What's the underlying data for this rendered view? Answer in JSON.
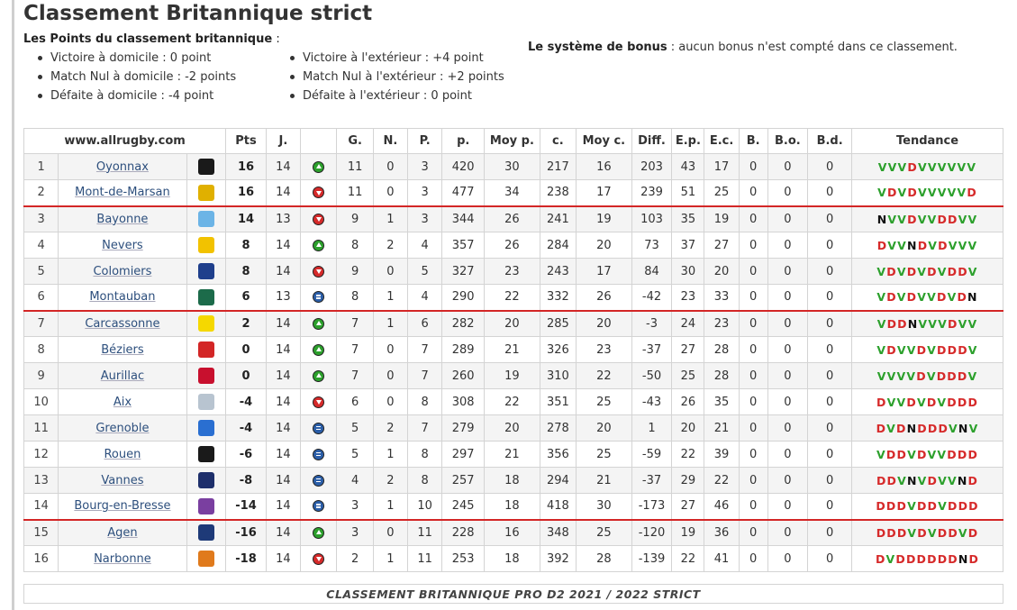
{
  "title": "Classement Britannique strict",
  "points_title": "Les Points du classement britannique",
  "points_colon": " :",
  "rules_left": [
    "Victoire à domicile : 0 point",
    "Match Nul à domicile : -2 points",
    "Défaite à domicile : -4 point"
  ],
  "rules_right": [
    "Victoire à l'extérieur : +4 point",
    "Match Nul à l'extérieur : +2 points",
    "Défaite à l'extérieur : 0 point"
  ],
  "bonus_label": "Le système de bonus",
  "bonus_text": " : aucun bonus n'est compté dans ce classement.",
  "table": {
    "site": "www.allrugby.com",
    "headers": [
      "Pts",
      "J.",
      "",
      "G.",
      "N.",
      "P.",
      "p.",
      "Moy p.",
      "c.",
      "Moy c.",
      "Diff.",
      "E.p.",
      "E.c.",
      "B.",
      "B.o.",
      "B.d.",
      "Tendance"
    ],
    "rows": [
      {
        "pos": "1",
        "team": "Oyonnax",
        "logo": "#1a1a1a",
        "pts": "16",
        "j": "14",
        "trend": "up",
        "g": "11",
        "n": "0",
        "p": "3",
        "pf": "420",
        "moyp": "30",
        "c": "217",
        "moyc": "16",
        "diff": "203",
        "ep": "43",
        "ec": "17",
        "b": "0",
        "bo": "0",
        "bd": "0",
        "tend": "VVVDVVVVVV"
      },
      {
        "pos": "2",
        "team": "Mont-de-Marsan",
        "logo": "#e0b000",
        "pts": "16",
        "j": "14",
        "trend": "down",
        "g": "11",
        "n": "0",
        "p": "3",
        "pf": "477",
        "moyp": "34",
        "c": "238",
        "moyc": "17",
        "diff": "239",
        "ep": "51",
        "ec": "25",
        "b": "0",
        "bo": "0",
        "bd": "0",
        "tend": "VDVDVVVVVD"
      },
      {
        "pos": "3",
        "team": "Bayonne",
        "logo": "#6cb4e6",
        "pts": "14",
        "j": "13",
        "trend": "down",
        "g": "9",
        "n": "1",
        "p": "3",
        "pf": "344",
        "moyp": "26",
        "c": "241",
        "moyc": "19",
        "diff": "103",
        "ep": "35",
        "ec": "19",
        "b": "0",
        "bo": "0",
        "bd": "0",
        "tend": "NVVDVVDDVV"
      },
      {
        "pos": "4",
        "team": "Nevers",
        "logo": "#f2c200",
        "pts": "8",
        "j": "14",
        "trend": "up",
        "g": "8",
        "n": "2",
        "p": "4",
        "pf": "357",
        "moyp": "26",
        "c": "284",
        "moyc": "20",
        "diff": "73",
        "ep": "37",
        "ec": "27",
        "b": "0",
        "bo": "0",
        "bd": "0",
        "tend": "DVVNDVDVVV"
      },
      {
        "pos": "5",
        "team": "Colomiers",
        "logo": "#1f3f8c",
        "pts": "8",
        "j": "14",
        "trend": "down",
        "g": "9",
        "n": "0",
        "p": "5",
        "pf": "327",
        "moyp": "23",
        "c": "243",
        "moyc": "17",
        "diff": "84",
        "ep": "30",
        "ec": "20",
        "b": "0",
        "bo": "0",
        "bd": "0",
        "tend": "VDVDVDVDDV"
      },
      {
        "pos": "6",
        "team": "Montauban",
        "logo": "#1c6b4a",
        "pts": "6",
        "j": "13",
        "trend": "eq",
        "g": "8",
        "n": "1",
        "p": "4",
        "pf": "290",
        "moyp": "22",
        "c": "332",
        "moyc": "26",
        "diff": "-42",
        "ep": "23",
        "ec": "33",
        "b": "0",
        "bo": "0",
        "bd": "0",
        "tend": "VDVDVVDVDN"
      },
      {
        "pos": "7",
        "team": "Carcassonne",
        "logo": "#f5d800",
        "pts": "2",
        "j": "14",
        "trend": "up",
        "g": "7",
        "n": "1",
        "p": "6",
        "pf": "282",
        "moyp": "20",
        "c": "285",
        "moyc": "20",
        "diff": "-3",
        "ep": "24",
        "ec": "23",
        "b": "0",
        "bo": "0",
        "bd": "0",
        "tend": "VDDNVVVDVV"
      },
      {
        "pos": "8",
        "team": "Béziers",
        "logo": "#d32626",
        "pts": "0",
        "j": "14",
        "trend": "up",
        "g": "7",
        "n": "0",
        "p": "7",
        "pf": "289",
        "moyp": "21",
        "c": "326",
        "moyc": "23",
        "diff": "-37",
        "ep": "27",
        "ec": "28",
        "b": "0",
        "bo": "0",
        "bd": "0",
        "tend": "VDVVDVDDDV"
      },
      {
        "pos": "9",
        "team": "Aurillac",
        "logo": "#c8102e",
        "pts": "0",
        "j": "14",
        "trend": "up",
        "g": "7",
        "n": "0",
        "p": "7",
        "pf": "260",
        "moyp": "19",
        "c": "310",
        "moyc": "22",
        "diff": "-50",
        "ep": "25",
        "ec": "28",
        "b": "0",
        "bo": "0",
        "bd": "0",
        "tend": "VVVVDVDDDV"
      },
      {
        "pos": "10",
        "team": "Aix",
        "logo": "#b8c4d0",
        "pts": "-4",
        "j": "14",
        "trend": "down",
        "g": "6",
        "n": "0",
        "p": "8",
        "pf": "308",
        "moyp": "22",
        "c": "351",
        "moyc": "25",
        "diff": "-43",
        "ep": "26",
        "ec": "35",
        "b": "0",
        "bo": "0",
        "bd": "0",
        "tend": "DVVDVDVDDD"
      },
      {
        "pos": "11",
        "team": "Grenoble",
        "logo": "#2a6fd1",
        "pts": "-4",
        "j": "14",
        "trend": "eq",
        "g": "5",
        "n": "2",
        "p": "7",
        "pf": "279",
        "moyp": "20",
        "c": "278",
        "moyc": "20",
        "diff": "1",
        "ep": "20",
        "ec": "21",
        "b": "0",
        "bo": "0",
        "bd": "0",
        "tend": "DVDNDDDVNV"
      },
      {
        "pos": "12",
        "team": "Rouen",
        "logo": "#1a1a1a",
        "pts": "-6",
        "j": "14",
        "trend": "eq",
        "g": "5",
        "n": "1",
        "p": "8",
        "pf": "297",
        "moyp": "21",
        "c": "356",
        "moyc": "25",
        "diff": "-59",
        "ep": "22",
        "ec": "39",
        "b": "0",
        "bo": "0",
        "bd": "0",
        "tend": "VDDVDVVDDD"
      },
      {
        "pos": "13",
        "team": "Vannes",
        "logo": "#1e2f6b",
        "pts": "-8",
        "j": "14",
        "trend": "eq",
        "g": "4",
        "n": "2",
        "p": "8",
        "pf": "257",
        "moyp": "18",
        "c": "294",
        "moyc": "21",
        "diff": "-37",
        "ep": "29",
        "ec": "22",
        "b": "0",
        "bo": "0",
        "bd": "0",
        "tend": "DDVNVDVVND"
      },
      {
        "pos": "14",
        "team": "Bourg-en-Bresse",
        "logo": "#7a3fa0",
        "pts": "-14",
        "j": "14",
        "trend": "eq",
        "g": "3",
        "n": "1",
        "p": "10",
        "pf": "245",
        "moyp": "18",
        "c": "418",
        "moyc": "30",
        "diff": "-173",
        "ep": "27",
        "ec": "46",
        "b": "0",
        "bo": "0",
        "bd": "0",
        "tend": "DDDVDDVDDD"
      },
      {
        "pos": "15",
        "team": "Agen",
        "logo": "#1e3a78",
        "pts": "-16",
        "j": "14",
        "trend": "up",
        "g": "3",
        "n": "0",
        "p": "11",
        "pf": "228",
        "moyp": "16",
        "c": "348",
        "moyc": "25",
        "diff": "-120",
        "ep": "19",
        "ec": "36",
        "b": "0",
        "bo": "0",
        "bd": "0",
        "tend": "DDDVDVDDVD"
      },
      {
        "pos": "16",
        "team": "Narbonne",
        "logo": "#e07a1c",
        "pts": "-18",
        "j": "14",
        "trend": "down",
        "g": "2",
        "n": "1",
        "p": "11",
        "pf": "253",
        "moyp": "18",
        "c": "392",
        "moyc": "28",
        "diff": "-139",
        "ep": "22",
        "ec": "41",
        "b": "0",
        "bo": "0",
        "bd": "0",
        "tend": "DVDDDDDDND"
      }
    ],
    "separators_before": [
      "3",
      "7",
      "15"
    ]
  },
  "caption": "CLASSEMENT BRITANNIQUE PRO D2 2021 / 2022 STRICT"
}
